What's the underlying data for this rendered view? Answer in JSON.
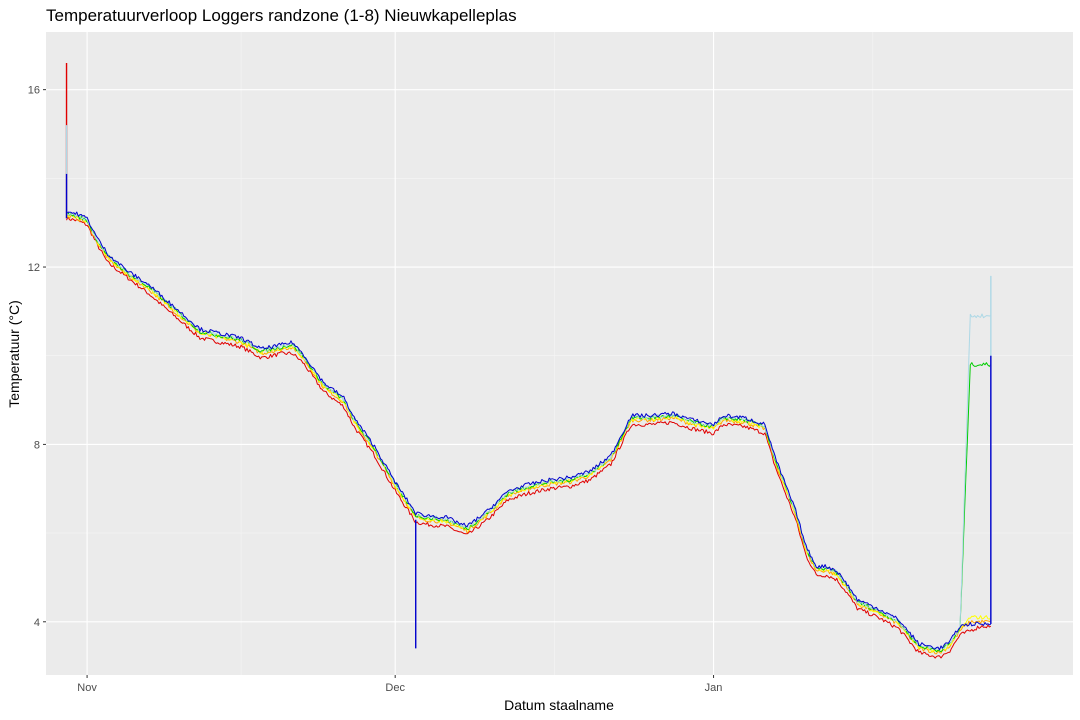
{
  "chart_data": {
    "type": "line",
    "title": "Temperatuurverloop Loggers randzone (1-8) Nieuwkapelleplas",
    "xlabel": "Datum staalname",
    "ylabel": "Temperatuur (°C)",
    "x_ticks": [
      "Nov",
      "Dec",
      "Jan"
    ],
    "y_ticks": [
      4,
      8,
      12,
      16
    ],
    "xlim": [
      "2022-10-28",
      "2023-02-05"
    ],
    "ylim": [
      2.8,
      17.3
    ],
    "grid": true,
    "background": "#ebebeb",
    "legend": "none",
    "x": [
      "2022-10-30",
      "2022-10-31",
      "2022-11-01",
      "2022-11-02",
      "2022-11-03",
      "2022-11-05",
      "2022-11-07",
      "2022-11-09",
      "2022-11-11",
      "2022-11-12",
      "2022-11-14",
      "2022-11-16",
      "2022-11-18",
      "2022-11-20",
      "2022-11-21",
      "2022-11-22",
      "2022-11-24",
      "2022-11-26",
      "2022-11-27",
      "2022-11-29",
      "2022-12-01",
      "2022-12-03",
      "2022-12-04",
      "2022-12-06",
      "2022-12-08",
      "2022-12-10",
      "2022-12-12",
      "2022-12-14",
      "2022-12-16",
      "2022-12-18",
      "2022-12-20",
      "2022-12-22",
      "2022-12-24",
      "2022-12-26",
      "2022-12-28",
      "2022-12-30",
      "2023-01-01",
      "2023-01-02",
      "2023-01-04",
      "2023-01-06",
      "2023-01-07",
      "2023-01-09",
      "2023-01-10",
      "2023-01-11",
      "2023-01-12",
      "2023-01-13",
      "2023-01-14",
      "2023-01-15",
      "2023-01-17",
      "2023-01-19",
      "2023-01-21",
      "2023-01-23",
      "2023-01-24",
      "2023-01-25",
      "2023-01-26",
      "2023-01-27",
      "2023-01-28"
    ],
    "series": [
      {
        "color": "#e00000",
        "values": [
          13.1,
          13.05,
          12.95,
          12.5,
          12.1,
          11.75,
          11.4,
          11.0,
          10.6,
          10.4,
          10.3,
          10.2,
          9.95,
          10.05,
          10.05,
          9.85,
          9.2,
          8.85,
          8.4,
          7.75,
          6.95,
          6.25,
          6.2,
          6.15,
          5.95,
          6.3,
          6.75,
          6.9,
          7.0,
          7.05,
          7.2,
          7.55,
          8.45,
          8.45,
          8.5,
          8.35,
          8.25,
          8.45,
          8.4,
          8.25,
          7.5,
          6.3,
          5.5,
          5.05,
          5.05,
          4.95,
          4.65,
          4.3,
          4.1,
          3.85,
          3.3,
          3.2,
          3.35,
          3.7,
          3.8,
          3.9,
          3.9
        ]
      },
      {
        "color": "#ffa500",
        "values": [
          13.15,
          13.1,
          13.0,
          12.55,
          12.2,
          11.8,
          11.5,
          11.1,
          10.7,
          10.5,
          10.4,
          10.3,
          10.05,
          10.15,
          10.2,
          9.95,
          9.3,
          8.95,
          8.5,
          7.85,
          7.05,
          6.35,
          6.3,
          6.25,
          6.05,
          6.4,
          6.85,
          7.0,
          7.1,
          7.15,
          7.3,
          7.65,
          8.55,
          8.55,
          8.6,
          8.45,
          8.35,
          8.55,
          8.5,
          8.35,
          7.6,
          6.4,
          5.6,
          5.15,
          5.15,
          5.05,
          4.75,
          4.4,
          4.2,
          3.95,
          3.4,
          3.3,
          3.45,
          3.8,
          4.0,
          4.0,
          4.0
        ]
      },
      {
        "color": "#ffff00",
        "values": [
          13.17,
          13.12,
          13.02,
          12.58,
          12.22,
          11.82,
          11.52,
          11.12,
          10.72,
          10.52,
          10.42,
          10.32,
          10.07,
          10.17,
          10.22,
          9.97,
          9.32,
          8.97,
          8.52,
          7.87,
          7.07,
          6.37,
          6.32,
          6.27,
          6.07,
          6.42,
          6.87,
          7.02,
          7.12,
          7.17,
          7.32,
          7.67,
          8.57,
          8.57,
          8.62,
          8.47,
          8.37,
          8.57,
          8.52,
          8.37,
          7.62,
          6.42,
          5.62,
          5.17,
          5.17,
          5.07,
          4.77,
          4.42,
          4.22,
          3.97,
          3.42,
          3.32,
          3.47,
          3.82,
          4.1,
          4.1,
          4.1
        ]
      },
      {
        "color": "#00cc00",
        "values": [
          13.2,
          13.15,
          13.05,
          12.6,
          12.25,
          11.85,
          11.55,
          11.15,
          10.75,
          10.55,
          10.45,
          10.35,
          10.1,
          10.2,
          10.25,
          10.0,
          9.35,
          9.0,
          8.55,
          7.9,
          7.1,
          6.4,
          6.35,
          6.3,
          6.1,
          6.45,
          6.9,
          7.05,
          7.15,
          7.2,
          7.35,
          7.7,
          8.6,
          8.6,
          8.65,
          8.5,
          8.4,
          8.6,
          8.55,
          8.4,
          7.65,
          6.45,
          5.65,
          5.2,
          5.2,
          5.1,
          4.8,
          4.45,
          4.25,
          4.0,
          3.45,
          3.35,
          3.5,
          3.85,
          9.8,
          9.8,
          9.8
        ]
      },
      {
        "color": "#add8e6",
        "values": [
          13.22,
          13.17,
          13.07,
          12.62,
          12.27,
          11.87,
          11.57,
          11.17,
          10.77,
          10.57,
          10.47,
          10.37,
          10.12,
          10.22,
          10.27,
          10.02,
          9.37,
          9.02,
          8.57,
          7.92,
          7.12,
          6.42,
          6.37,
          6.32,
          6.12,
          6.47,
          6.92,
          7.07,
          7.17,
          7.22,
          7.37,
          7.72,
          8.62,
          8.62,
          8.67,
          8.52,
          8.42,
          8.62,
          8.57,
          8.42,
          7.67,
          6.47,
          5.67,
          5.22,
          5.22,
          5.12,
          4.82,
          4.47,
          4.27,
          4.02,
          3.47,
          3.37,
          3.52,
          3.87,
          10.9,
          10.9,
          10.9
        ]
      },
      {
        "color": "#0000cc",
        "values": [
          13.25,
          13.2,
          13.1,
          12.65,
          12.3,
          11.9,
          11.6,
          11.2,
          10.8,
          10.6,
          10.5,
          10.4,
          10.15,
          10.25,
          10.3,
          10.05,
          9.4,
          9.05,
          8.6,
          7.95,
          7.15,
          6.45,
          6.4,
          6.35,
          6.15,
          6.5,
          6.95,
          7.1,
          7.2,
          7.25,
          7.4,
          7.75,
          8.65,
          8.65,
          8.7,
          8.55,
          8.45,
          8.65,
          8.6,
          8.45,
          7.7,
          6.5,
          5.7,
          5.25,
          5.25,
          5.15,
          4.85,
          4.5,
          4.3,
          4.05,
          3.5,
          3.4,
          3.55,
          3.9,
          3.95,
          3.95,
          3.95
        ]
      }
    ],
    "spikes": [
      {
        "x": "2022-10-30",
        "from": 13.1,
        "to": 16.6,
        "color": "#e00000"
      },
      {
        "x": "2022-10-30",
        "from": 13.1,
        "to": 15.2,
        "color": "#add8e6"
      },
      {
        "x": "2022-10-30",
        "from": 13.1,
        "to": 14.1,
        "color": "#0000cc"
      },
      {
        "x": "2022-12-03",
        "from": 6.3,
        "to": 3.4,
        "color": "#0000cc"
      },
      {
        "x": "2023-01-28",
        "from": 3.95,
        "to": 11.8,
        "color": "#add8e6"
      },
      {
        "x": "2023-01-28",
        "from": 3.95,
        "to": 10.0,
        "color": "#0000cc"
      }
    ]
  }
}
